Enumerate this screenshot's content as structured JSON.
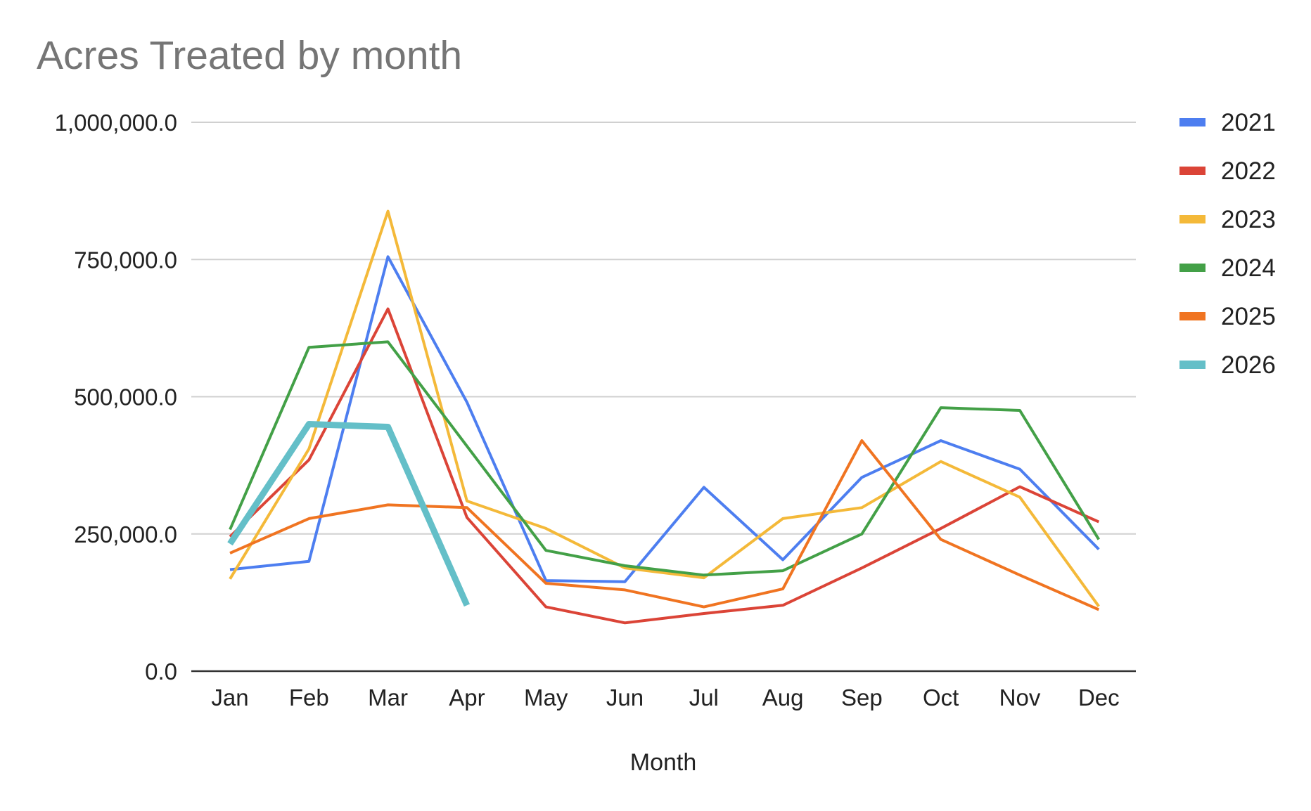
{
  "chart_data": {
    "type": "line",
    "title": "Acres Treated by month",
    "xlabel": "Month",
    "ylabel": "",
    "categories": [
      "Jan",
      "Feb",
      "Mar",
      "Apr",
      "May",
      "Jun",
      "Jul",
      "Aug",
      "Sep",
      "Oct",
      "Nov",
      "Dec"
    ],
    "ylim": [
      0,
      1000000
    ],
    "yticks": [
      0,
      250000,
      500000,
      750000,
      1000000
    ],
    "ytick_labels": [
      "0.0",
      "250,000.0",
      "500,000.0",
      "750,000.0",
      "1,000,000.0"
    ],
    "grid": true,
    "legend": "right",
    "series": [
      {
        "name": "2021",
        "color": "#4d7ef0",
        "values": [
          185000,
          200000,
          755000,
          490000,
          165000,
          163000,
          335000,
          203000,
          353000,
          420000,
          368000,
          222000
        ]
      },
      {
        "name": "2022",
        "color": "#db4437",
        "values": [
          245000,
          385000,
          660000,
          280000,
          117000,
          88000,
          105000,
          120000,
          188000,
          260000,
          336000,
          272000
        ]
      },
      {
        "name": "2023",
        "color": "#f4b939",
        "values": [
          168000,
          405000,
          838000,
          310000,
          260000,
          188000,
          170000,
          278000,
          298000,
          382000,
          317000,
          118000
        ]
      },
      {
        "name": "2024",
        "color": "#43a047",
        "values": [
          258000,
          590000,
          600000,
          410000,
          220000,
          192000,
          175000,
          183000,
          250000,
          480000,
          475000,
          240000
        ]
      },
      {
        "name": "2025",
        "color": "#f07421",
        "values": [
          215000,
          278000,
          303000,
          298000,
          160000,
          148000,
          117000,
          150000,
          420000,
          240000,
          175000,
          112000
        ]
      },
      {
        "name": "2026",
        "color": "#64bfc8",
        "width": 9,
        "values": [
          232000,
          450000,
          445000,
          120000,
          null,
          null,
          null,
          null,
          null,
          null,
          null,
          null
        ]
      }
    ]
  }
}
